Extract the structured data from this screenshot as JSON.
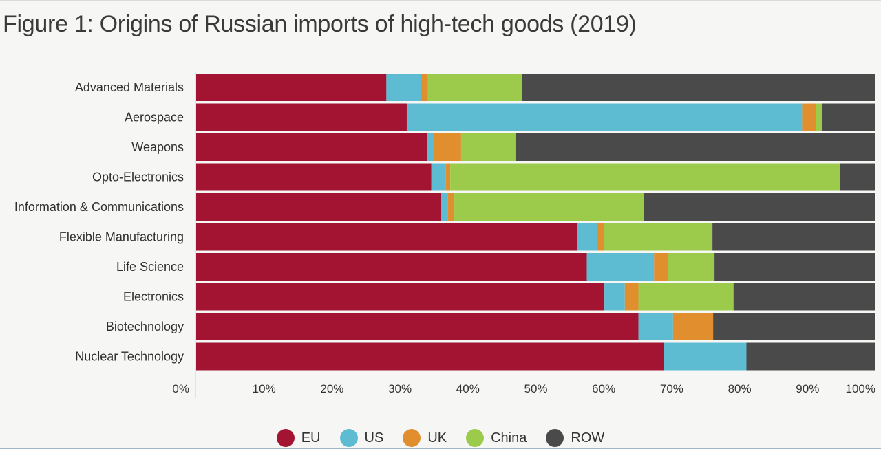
{
  "title": "Figure 1: Origins of Russian imports of high-tech goods (2019)",
  "colors": {
    "EU": "#a31432",
    "US": "#5ebcd2",
    "UK": "#e08e2e",
    "China": "#9ccb4c",
    "ROW": "#4a4a4a"
  },
  "chart_data": {
    "type": "bar",
    "orientation": "horizontal",
    "stacked": true,
    "title": "Figure 1: Origins of Russian imports of high-tech goods (2019)",
    "categories": [
      "Advanced Materials",
      "Aerospace",
      "Weapons",
      "Opto-Electronics",
      "Information & Communications",
      "Flexible Manufacturing",
      "Life Science",
      "Electronics",
      "Biotechnology",
      "Nuclear Technology"
    ],
    "series": [
      {
        "name": "EU",
        "values": [
          28.0,
          31.0,
          34.0,
          34.6,
          36.0,
          56.1,
          57.5,
          60.1,
          65.1,
          68.8
        ]
      },
      {
        "name": "US",
        "values": [
          5.1,
          58.2,
          1.0,
          2.1,
          1.0,
          2.9,
          9.9,
          3.0,
          5.1,
          12.2
        ]
      },
      {
        "name": "UK",
        "values": [
          1.0,
          2.0,
          4.0,
          0.7,
          1.0,
          1.0,
          2.0,
          2.0,
          5.9,
          0.0
        ]
      },
      {
        "name": "China",
        "values": [
          13.9,
          0.9,
          8.0,
          57.4,
          27.9,
          16.0,
          6.9,
          14.0,
          0.0,
          0.0
        ]
      },
      {
        "name": "ROW",
        "values": [
          52.0,
          7.9,
          53.0,
          5.2,
          34.1,
          24.0,
          23.7,
          20.9,
          23.9,
          19.0
        ]
      }
    ],
    "xlim": [
      0,
      100
    ],
    "x_ticks": [
      "0%",
      "10%",
      "20%",
      "30%",
      "40%",
      "50%",
      "60%",
      "70%",
      "80%",
      "90%",
      "100%"
    ],
    "xlabel": "",
    "ylabel": "",
    "legend_position": "bottom-center",
    "grid": false
  }
}
